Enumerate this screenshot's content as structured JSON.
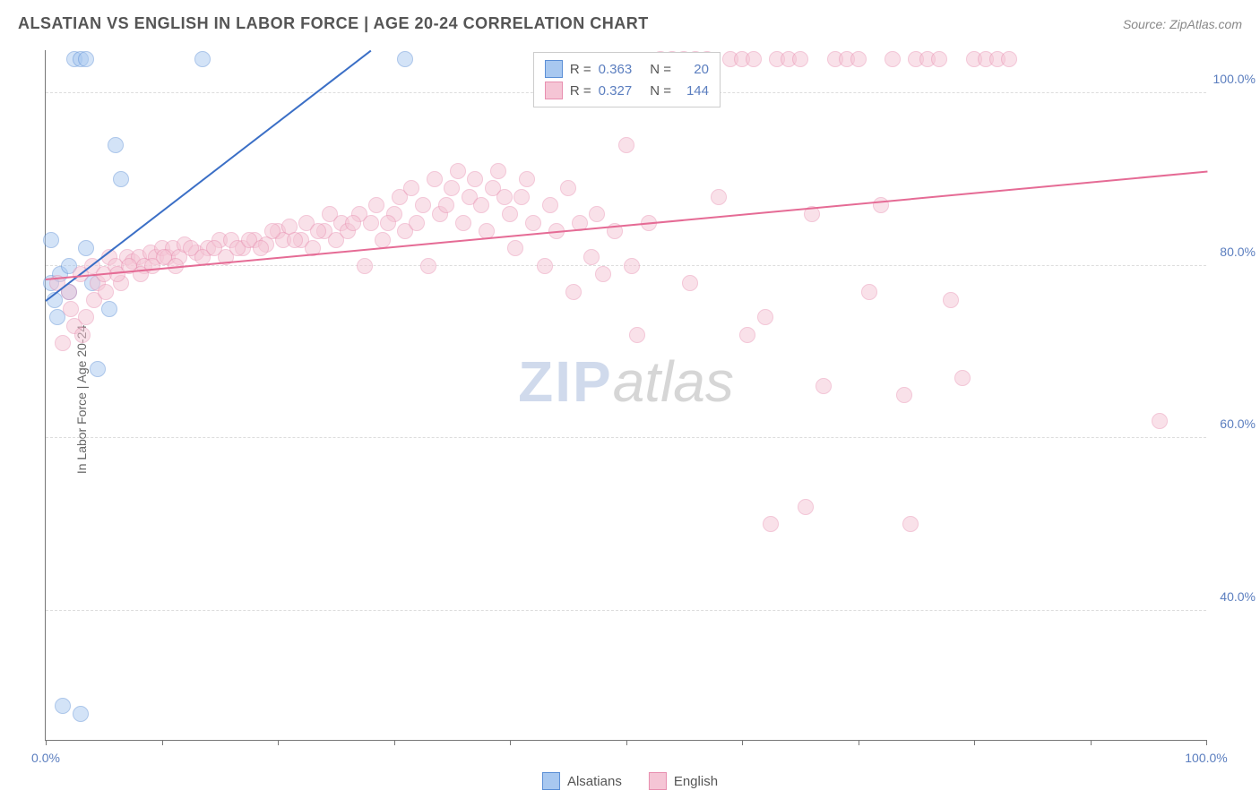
{
  "title": "ALSATIAN VS ENGLISH IN LABOR FORCE | AGE 20-24 CORRELATION CHART",
  "source": "Source: ZipAtlas.com",
  "y_axis_label": "In Labor Force | Age 20-24",
  "watermark": {
    "part1": "ZIP",
    "part2": "atlas"
  },
  "chart": {
    "type": "scatter",
    "background_color": "#ffffff",
    "grid_color": "#dddddd",
    "axis_color": "#777777",
    "xlim": [
      0,
      100
    ],
    "ylim": [
      25,
      105
    ],
    "y_ticks": [
      40,
      60,
      80,
      100
    ],
    "y_tick_labels": [
      "40.0%",
      "60.0%",
      "80.0%",
      "100.0%"
    ],
    "x_ticks": [
      0,
      10,
      20,
      30,
      40,
      50,
      60,
      70,
      80,
      90,
      100
    ],
    "x_tick_labels_shown": {
      "0": "0.0%",
      "100": "100.0%"
    },
    "point_radius": 9,
    "point_opacity": 0.5,
    "series": [
      {
        "name": "Alsatians",
        "fill_color": "#a8c8f0",
        "stroke_color": "#5b8fd6",
        "line_color": "#3b6fc6",
        "r_value": "0.363",
        "n_value": "20",
        "trend": {
          "x1": 0,
          "y1": 76,
          "x2": 28,
          "y2": 105
        },
        "points": [
          [
            0.5,
            78
          ],
          [
            0.8,
            76
          ],
          [
            1.2,
            79
          ],
          [
            2.5,
            104
          ],
          [
            3.0,
            104
          ],
          [
            3.5,
            82
          ],
          [
            4.0,
            78
          ],
          [
            4.5,
            68
          ],
          [
            5.5,
            75
          ],
          [
            6.0,
            94
          ],
          [
            6.5,
            90
          ],
          [
            13.5,
            104
          ],
          [
            1.5,
            29
          ],
          [
            3.0,
            28
          ],
          [
            31,
            104
          ],
          [
            1.0,
            74
          ],
          [
            2.0,
            77
          ],
          [
            0.5,
            83
          ],
          [
            3.5,
            104
          ],
          [
            2.0,
            80
          ]
        ]
      },
      {
        "name": "English",
        "fill_color": "#f5c5d5",
        "stroke_color": "#e88fb0",
        "line_color": "#e56b95",
        "r_value": "0.327",
        "n_value": "144",
        "trend": {
          "x1": 0,
          "y1": 78.5,
          "x2": 100,
          "y2": 91
        },
        "points": [
          [
            1,
            78
          ],
          [
            2,
            77
          ],
          [
            2.5,
            73
          ],
          [
            3,
            79
          ],
          [
            3.5,
            74
          ],
          [
            4,
            80
          ],
          [
            4.5,
            78
          ],
          [
            5,
            79
          ],
          [
            5.5,
            81
          ],
          [
            6,
            80
          ],
          [
            6.5,
            78
          ],
          [
            7,
            81
          ],
          [
            7.5,
            80.5
          ],
          [
            8,
            81
          ],
          [
            8.5,
            80
          ],
          [
            9,
            81.5
          ],
          [
            9.5,
            81
          ],
          [
            10,
            82
          ],
          [
            10.5,
            81
          ],
          [
            11,
            82
          ],
          [
            11.5,
            81
          ],
          [
            12,
            82.5
          ],
          [
            13,
            81.5
          ],
          [
            14,
            82
          ],
          [
            15,
            83
          ],
          [
            15.5,
            81
          ],
          [
            16,
            83
          ],
          [
            17,
            82
          ],
          [
            18,
            83
          ],
          [
            19,
            82.5
          ],
          [
            20,
            84
          ],
          [
            20.5,
            83
          ],
          [
            21,
            84.5
          ],
          [
            22,
            83
          ],
          [
            22.5,
            85
          ],
          [
            23,
            82
          ],
          [
            24,
            84
          ],
          [
            24.5,
            86
          ],
          [
            25,
            83
          ],
          [
            25.5,
            85
          ],
          [
            26,
            84
          ],
          [
            27,
            86
          ],
          [
            27.5,
            80
          ],
          [
            28,
            85
          ],
          [
            28.5,
            87
          ],
          [
            29,
            83
          ],
          [
            30,
            86
          ],
          [
            30.5,
            88
          ],
          [
            31,
            84
          ],
          [
            31.5,
            89
          ],
          [
            32,
            85
          ],
          [
            32.5,
            87
          ],
          [
            33,
            80
          ],
          [
            33.5,
            90
          ],
          [
            34,
            86
          ],
          [
            35,
            89
          ],
          [
            35.5,
            91
          ],
          [
            36,
            85
          ],
          [
            36.5,
            88
          ],
          [
            37,
            90
          ],
          [
            37.5,
            87
          ],
          [
            38,
            84
          ],
          [
            38.5,
            89
          ],
          [
            39,
            91
          ],
          [
            40,
            86
          ],
          [
            40.5,
            82
          ],
          [
            41,
            88
          ],
          [
            41.5,
            90
          ],
          [
            42,
            85
          ],
          [
            43,
            80
          ],
          [
            43.5,
            87
          ],
          [
            44,
            84
          ],
          [
            45,
            89
          ],
          [
            45.5,
            77
          ],
          [
            46,
            85
          ],
          [
            47,
            81
          ],
          [
            47.5,
            86
          ],
          [
            48,
            79
          ],
          [
            49,
            84
          ],
          [
            50,
            94
          ],
          [
            50.5,
            80
          ],
          [
            51,
            72
          ],
          [
            52,
            85
          ],
          [
            53,
            104
          ],
          [
            54,
            104
          ],
          [
            55,
            104
          ],
          [
            55.5,
            78
          ],
          [
            56,
            104
          ],
          [
            57,
            104
          ],
          [
            58,
            88
          ],
          [
            59,
            104
          ],
          [
            60,
            104
          ],
          [
            60.5,
            72
          ],
          [
            61,
            104
          ],
          [
            62,
            74
          ],
          [
            62.5,
            50
          ],
          [
            63,
            104
          ],
          [
            64,
            104
          ],
          [
            65,
            104
          ],
          [
            65.5,
            52
          ],
          [
            66,
            86
          ],
          [
            67,
            66
          ],
          [
            68,
            104
          ],
          [
            69,
            104
          ],
          [
            70,
            104
          ],
          [
            71,
            77
          ],
          [
            72,
            87
          ],
          [
            73,
            104
          ],
          [
            74,
            65
          ],
          [
            74.5,
            50
          ],
          [
            75,
            104
          ],
          [
            76,
            104
          ],
          [
            77,
            104
          ],
          [
            78,
            76
          ],
          [
            79,
            67
          ],
          [
            80,
            104
          ],
          [
            81,
            104
          ],
          [
            82,
            104
          ],
          [
            83,
            104
          ],
          [
            96,
            62
          ],
          [
            1.5,
            71
          ],
          [
            2.2,
            75
          ],
          [
            3.2,
            72
          ],
          [
            4.2,
            76
          ],
          [
            5.2,
            77
          ],
          [
            6.2,
            79
          ],
          [
            7.2,
            80
          ],
          [
            8.2,
            79
          ],
          [
            9.2,
            80
          ],
          [
            10.2,
            81
          ],
          [
            11.2,
            80
          ],
          [
            12.5,
            82
          ],
          [
            13.5,
            81
          ],
          [
            14.5,
            82
          ],
          [
            16.5,
            82
          ],
          [
            17.5,
            83
          ],
          [
            18.5,
            82
          ],
          [
            19.5,
            84
          ],
          [
            21.5,
            83
          ],
          [
            23.5,
            84
          ],
          [
            26.5,
            85
          ],
          [
            29.5,
            85
          ],
          [
            34.5,
            87
          ],
          [
            39.5,
            88
          ]
        ]
      }
    ]
  },
  "legend_top": {
    "r_label": "R =",
    "n_label": "N ="
  },
  "bottom_legend": {
    "items": [
      "Alsatians",
      "English"
    ]
  }
}
